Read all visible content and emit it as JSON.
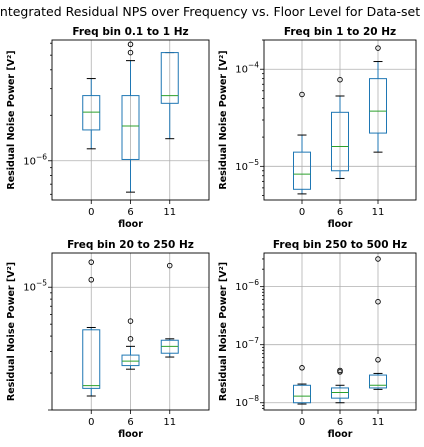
{
  "figure_title": "Integrated Residual NPS over Frequency vs. Floor Level for Data-set I",
  "colors": {
    "box": "#1f77b4",
    "median": "#2ca02c",
    "grid": "#b0b0b0"
  },
  "chart_data": [
    {
      "type": "box",
      "title": "Freq bin 0.1 to 1 Hz",
      "xlabel": "floor",
      "ylabel": "Residual Noise Power [V²]",
      "yscale": "log",
      "ylim": [
        5.5e-07,
        6.3e-06
      ],
      "yticks": [
        {
          "value": 1e-06,
          "base": "10",
          "exp": "−6"
        }
      ],
      "grid": true,
      "categories": [
        "0",
        "6",
        "11"
      ],
      "boxes": [
        {
          "whislo": 1.2e-06,
          "q1": 1.6e-06,
          "med": 2.1e-06,
          "q3": 2.7e-06,
          "whishi": 3.5e-06,
          "fliers": []
        },
        {
          "whislo": 6.2e-07,
          "q1": 1.02e-06,
          "med": 1.7e-06,
          "q3": 2.7e-06,
          "whishi": 4.6e-06,
          "fliers": [
            5.2e-06,
            5.9e-06
          ]
        },
        {
          "whislo": 1.4e-06,
          "q1": 2.4e-06,
          "med": 2.7e-06,
          "q3": 5.2e-06,
          "whishi": 5.2e-06,
          "fliers": []
        }
      ]
    },
    {
      "type": "box",
      "title": "Freq bin 1 to 20 Hz",
      "xlabel": "floor",
      "ylabel": "Residual Noise Power [V²]",
      "yscale": "log",
      "ylim": [
        4.5e-06,
        0.0002
      ],
      "yticks": [
        {
          "value": 1e-05,
          "base": "10",
          "exp": "−5"
        },
        {
          "value": 0.0001,
          "base": "10",
          "exp": "−4"
        }
      ],
      "grid": true,
      "categories": [
        "0",
        "6",
        "11"
      ],
      "boxes": [
        {
          "whislo": 5.2e-06,
          "q1": 5.8e-06,
          "med": 8.3e-06,
          "q3": 1.4e-05,
          "whishi": 2.1e-05,
          "fliers": [
            5.5e-05
          ]
        },
        {
          "whislo": 7.5e-06,
          "q1": 9e-06,
          "med": 1.6e-05,
          "q3": 3.6e-05,
          "whishi": 5.3e-05,
          "fliers": [
            7.8e-05
          ]
        },
        {
          "whislo": 1.4e-05,
          "q1": 2.2e-05,
          "med": 3.7e-05,
          "q3": 8e-05,
          "whishi": 0.00012,
          "fliers": [
            0.000165
          ]
        }
      ]
    },
    {
      "type": "box",
      "title": "Freq bin 20 to 250 Hz",
      "xlabel": "floor",
      "ylabel": "Residual Noise Power [V²]",
      "yscale": "log",
      "ylim": [
        1e-06,
        1.9e-05
      ],
      "yticks": [
        {
          "value": 1e-05,
          "base": "10",
          "exp": "−5"
        }
      ],
      "grid": true,
      "categories": [
        "0",
        "6",
        "11"
      ],
      "boxes": [
        {
          "whislo": 1.3e-06,
          "q1": 1.5e-06,
          "med": 1.58e-06,
          "q3": 4.5e-06,
          "whishi": 4.7e-06,
          "fliers": [
            1.15e-05,
            1.6e-05
          ]
        },
        {
          "whislo": 2.15e-06,
          "q1": 2.3e-06,
          "med": 2.5e-06,
          "q3": 2.8e-06,
          "whishi": 3.3e-06,
          "fliers": [
            3.8e-06,
            5.3e-06
          ]
        },
        {
          "whislo": 2.7e-06,
          "q1": 2.9e-06,
          "med": 3.3e-06,
          "q3": 3.7e-06,
          "whishi": 3.8e-06,
          "fliers": [
            1.5e-05
          ]
        }
      ]
    },
    {
      "type": "box",
      "title": "Freq bin 250 to 500 Hz",
      "xlabel": "floor",
      "ylabel": "Residual Noise Power [V²]",
      "yscale": "log",
      "ylim": [
        7.5e-09,
        3.8e-06
      ],
      "yticks": [
        {
          "value": 1e-08,
          "base": "10",
          "exp": "−8"
        },
        {
          "value": 1e-07,
          "base": "10",
          "exp": "−7"
        },
        {
          "value": 1e-06,
          "base": "10",
          "exp": "−6"
        }
      ],
      "grid": true,
      "categories": [
        "0",
        "6",
        "11"
      ],
      "boxes": [
        {
          "whislo": 9.5e-09,
          "q1": 1e-08,
          "med": 1.3e-08,
          "q3": 2e-08,
          "whishi": 2.1e-08,
          "fliers": [
            4e-08
          ]
        },
        {
          "whislo": 1e-08,
          "q1": 1.2e-08,
          "med": 1.5e-08,
          "q3": 1.8e-08,
          "whishi": 2e-08,
          "fliers": [
            3.4e-08,
            3.6e-08
          ]
        },
        {
          "whislo": 1.7e-08,
          "q1": 1.8e-08,
          "med": 2e-08,
          "q3": 3e-08,
          "whishi": 3.2e-08,
          "fliers": [
            5.5e-08,
            5.5e-07,
            3e-06
          ]
        }
      ]
    }
  ]
}
